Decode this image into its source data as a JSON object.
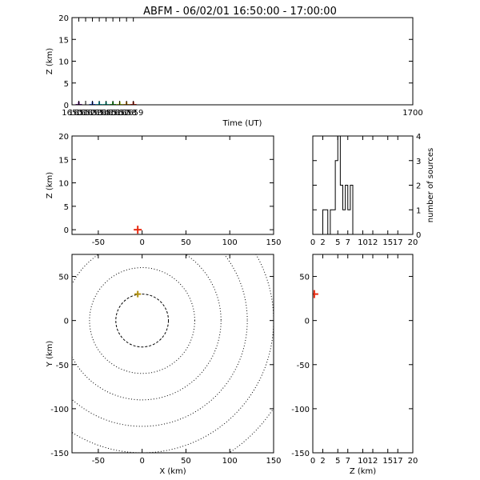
{
  "title": "ABFM - 06/02/01 16:50:00 - 17:00:00",
  "chart_data": [
    {
      "id": "time-height",
      "type": "scatter",
      "xlabel": "Time (UT)",
      "ylabel": "Z (km)",
      "xlim": [
        1650,
        1700
      ],
      "ylim": [
        0,
        20
      ],
      "xticks": [
        1650,
        1651,
        1652,
        1653,
        1654,
        1655,
        1656,
        1657,
        1658,
        1659,
        1700
      ],
      "yticks": [
        0,
        5,
        10,
        15,
        20
      ],
      "points": [
        {
          "x": 1651,
          "y": 0,
          "color": "#6a0a8a"
        },
        {
          "x": 1653,
          "y": 0,
          "color": "#1a4ee8"
        },
        {
          "x": 1654,
          "y": 0,
          "color": "#18d8e8"
        },
        {
          "x": 1655,
          "y": 0,
          "color": "#18e0c0"
        },
        {
          "x": 1656,
          "y": 0,
          "color": "#22cc22"
        },
        {
          "x": 1657,
          "y": 0,
          "color": "#c8ee18"
        },
        {
          "x": 1658,
          "y": 0,
          "color": "#f0a010"
        },
        {
          "x": 1659,
          "y": 0,
          "color": "#e82a10"
        }
      ]
    },
    {
      "id": "x-z",
      "type": "scatter",
      "xlabel": "",
      "ylabel": "Z (km)",
      "xlim": [
        -80,
        150
      ],
      "ylim": [
        -1,
        20
      ],
      "xticks": [
        -50,
        0,
        50,
        100,
        150
      ],
      "yticks": [
        0,
        5,
        10,
        15,
        20
      ],
      "points": [
        {
          "x": -5,
          "y": 0,
          "color": "#e82a10"
        }
      ]
    },
    {
      "id": "height-histogram",
      "type": "bar",
      "xlabel": "",
      "ylabel": "number of sources",
      "xlim": [
        0,
        20
      ],
      "ylim": [
        0,
        4
      ],
      "xticks": [
        0,
        2,
        5,
        7,
        10,
        12,
        15,
        17,
        20
      ],
      "yticks": [
        0,
        1,
        2,
        3,
        4
      ],
      "bin_edges": [
        0,
        0.5,
        1,
        1.5,
        2,
        2.5,
        3,
        3.5,
        4,
        4.5,
        5,
        5.5,
        6,
        6.5,
        7,
        7.5,
        8,
        8.5,
        9,
        9.5,
        10,
        20
      ],
      "values": [
        0,
        0,
        0,
        0,
        1,
        1,
        0,
        1,
        1,
        3,
        4,
        2,
        1,
        2,
        1,
        2,
        0,
        0,
        0,
        0,
        0
      ]
    },
    {
      "id": "x-y",
      "type": "scatter",
      "xlabel": "X (km)",
      "ylabel": "Y (km)",
      "xlim": [
        -80,
        150
      ],
      "ylim": [
        -150,
        75
      ],
      "xticks": [
        -50,
        0,
        50,
        100,
        150
      ],
      "yticks": [
        -150,
        -100,
        -50,
        0,
        50
      ],
      "range_rings_km": [
        30,
        60,
        90,
        120,
        150,
        180
      ],
      "points": [
        {
          "x": -5,
          "y": 30,
          "color": "#e82a10"
        }
      ]
    },
    {
      "id": "z-y",
      "type": "scatter",
      "xlabel": "Z (km)",
      "ylabel": "",
      "xlim": [
        0,
        20
      ],
      "ylim": [
        -150,
        75
      ],
      "xticks": [
        0,
        2,
        5,
        7,
        10,
        12,
        15,
        17,
        20
      ],
      "yticks": [
        -150,
        -100,
        -50,
        0,
        50
      ],
      "points": [
        {
          "x": 0.3,
          "y": 30,
          "color": "#e82a10"
        }
      ]
    }
  ]
}
